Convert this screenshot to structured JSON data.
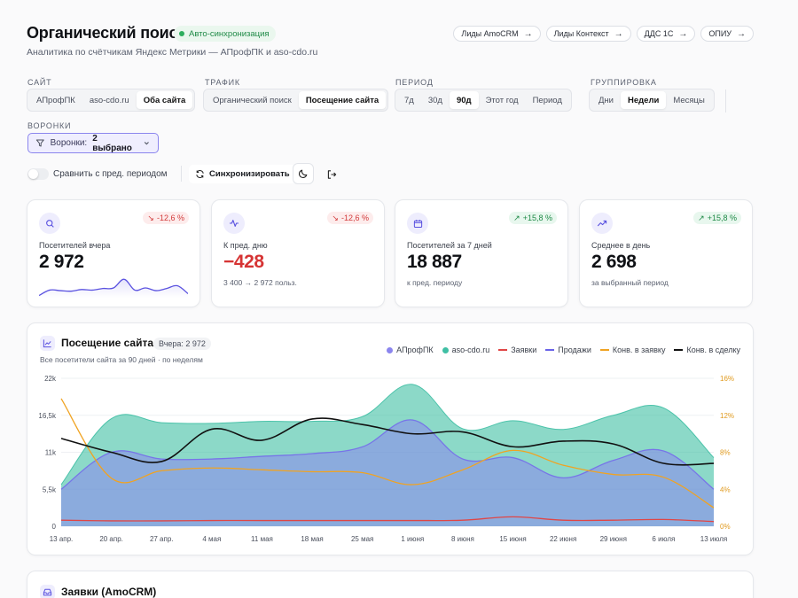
{
  "header": {
    "title": "Органический поиск",
    "sync_badge": "Авто-синхронизация",
    "subtitle": "Аналитика по счётчикам Яндекс Метрики — АПрофПК и aso-cdo.ru",
    "links": [
      "Лиды AmoCRM",
      "Лиды Контекст",
      "ДДС 1С",
      "ОПИУ"
    ]
  },
  "filters": {
    "site": {
      "label": "Сайт",
      "options": [
        "АПрофПК",
        "aso-cdo.ru",
        "Оба сайта"
      ],
      "selected": "Оба сайта"
    },
    "traffic": {
      "label": "Трафик",
      "options": [
        "Органический поиск",
        "Посещение сайта"
      ],
      "selected": "Посещение сайта"
    },
    "period": {
      "label": "Период",
      "options": [
        "7д",
        "30д",
        "90д",
        "Этот год",
        "Период"
      ],
      "selected": "90д"
    },
    "grouping": {
      "label": "Группировка",
      "options": [
        "Дни",
        "Недели",
        "Месяцы"
      ],
      "selected": "Недели"
    },
    "funnels": {
      "label": "Воронки",
      "prefix": "Воронки:",
      "value": "2 выбрано"
    }
  },
  "controls": {
    "compare_label": "Сравнить с пред. периодом",
    "sync_label": "Синхронизировать"
  },
  "kpis": [
    {
      "icon": "search-icon",
      "label": "Посетителей вчера",
      "value": "2 972",
      "delta": "-12,6 %",
      "trend": "down",
      "sub": ""
    },
    {
      "icon": "activity-icon",
      "label": "К пред. дню",
      "value": "−428",
      "delta": "-12,6 %",
      "trend": "down",
      "sub": "3 400 → 2 972 польз."
    },
    {
      "icon": "calendar-icon",
      "label": "Посетителей за 7 дней",
      "value": "18 887",
      "delta": "+15,8 %",
      "trend": "up",
      "sub": "к пред. периоду"
    },
    {
      "icon": "trend-up-icon",
      "label": "Среднее в день",
      "value": "2 698",
      "delta": "+15,8 %",
      "trend": "up",
      "sub": "за выбранный период"
    }
  ],
  "sparkline": [
    2800,
    3300,
    3250,
    3200,
    3350,
    3300,
    3450,
    3500,
    4300,
    3300,
    3500,
    3250,
    3450,
    3700,
    2972
  ],
  "chart_section": {
    "title": "Посещение сайта",
    "yesterday_badge": "Вчера: 2 972",
    "subtitle": "Все посетители сайта за 90 дней · по неделям"
  },
  "chart_data": {
    "type": "area",
    "x": [
      "13 апр.",
      "20 апр.",
      "27 апр.",
      "4 мая",
      "11 мая",
      "18 мая",
      "25 мая",
      "1 июня",
      "8 июня",
      "15 июня",
      "22 июня",
      "29 июня",
      "6 июля",
      "13 июля"
    ],
    "y_ticks": [
      "0",
      "5,5k",
      "11k",
      "16,5k",
      "22k"
    ],
    "y_range": [
      0,
      22000
    ],
    "y2_ticks": [
      "0%",
      "4%",
      "8%",
      "12%",
      "16%"
    ],
    "y2_range": [
      0,
      16
    ],
    "series": [
      {
        "name": "АПрофПК",
        "kind": "area",
        "color": "#8b85ee",
        "axis": "left",
        "values": [
          5500,
          11000,
          10000,
          10000,
          10400,
          10800,
          11800,
          15800,
          10000,
          10200,
          7200,
          9800,
          11200,
          5500
        ]
      },
      {
        "name": "aso-cdo.ru",
        "kind": "area",
        "color": "#3fbfa4",
        "axis": "left",
        "values": [
          6200,
          16000,
          15400,
          15300,
          15600,
          15600,
          16300,
          21100,
          14500,
          15700,
          14400,
          16500,
          17600,
          10200
        ]
      },
      {
        "name": "Заявки",
        "kind": "line",
        "color": "#e04545",
        "axis": "left",
        "values": [
          900,
          800,
          800,
          850,
          850,
          850,
          850,
          850,
          900,
          1400,
          900,
          900,
          1000,
          700
        ]
      },
      {
        "name": "Продажи",
        "kind": "line",
        "color": "#6a63e8",
        "axis": "left",
        "values": [
          5500,
          11000,
          10000,
          10000,
          10400,
          10800,
          11800,
          15800,
          10000,
          10200,
          7200,
          9800,
          11200,
          5500
        ]
      },
      {
        "name": "Конв. в заявку",
        "kind": "line",
        "color": "#f0a322",
        "axis": "right",
        "values": [
          13.8,
          5.2,
          6.0,
          6.3,
          6.1,
          5.9,
          5.8,
          4.5,
          6.1,
          8.2,
          6.6,
          5.6,
          5.3,
          2.0
        ]
      },
      {
        "name": "Конв. в сделку",
        "kind": "line",
        "color": "#111111",
        "axis": "right",
        "values": [
          9.5,
          8.0,
          7.0,
          10.5,
          9.3,
          11.6,
          11.0,
          10.0,
          10.2,
          8.6,
          9.2,
          8.9,
          6.8,
          6.8
        ]
      }
    ]
  },
  "section2": {
    "title": "Заявки (AmoCRM)"
  }
}
